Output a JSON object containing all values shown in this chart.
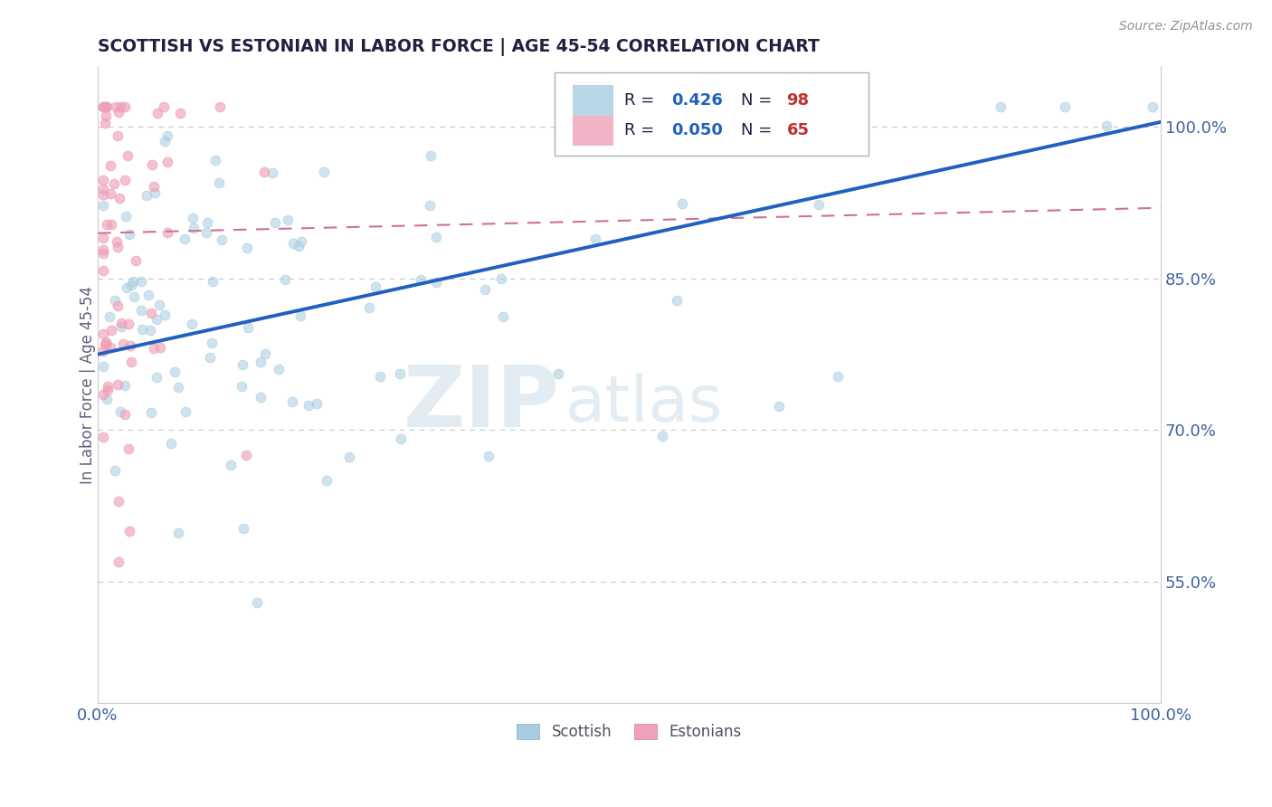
{
  "title": "SCOTTISH VS ESTONIAN IN LABOR FORCE | AGE 45-54 CORRELATION CHART",
  "source_text": "Source: ZipAtlas.com",
  "ylabel": "In Labor Force | Age 45-54",
  "xlim": [
    0.0,
    1.0
  ],
  "ylim": [
    0.43,
    1.06
  ],
  "x_ticks": [
    0.0,
    1.0
  ],
  "x_tick_labels": [
    "0.0%",
    "100.0%"
  ],
  "y_ticks": [
    0.55,
    0.7,
    0.85,
    1.0
  ],
  "y_tick_labels": [
    "55.0%",
    "70.0%",
    "85.0%",
    "100.0%"
  ],
  "watermark_zip": "ZIP",
  "watermark_atlas": "atlas",
  "legend_r1": "0.426",
  "legend_n1": "98",
  "legend_r2": "0.050",
  "legend_n2": "65",
  "legend_label1": "Scottish",
  "legend_label2": "Estonians",
  "blue_line_y0": 0.775,
  "blue_line_y1": 1.005,
  "pink_line_y0": 0.895,
  "pink_line_y1": 0.92,
  "scatter_size": 60,
  "blue_color": "#a8cce0",
  "pink_color": "#f0a0b8",
  "blue_line_color": "#2060c0",
  "pink_line_color": "#d07090",
  "grid_color": "#c8c8c8",
  "title_color": "#202040",
  "ylabel_color": "#606080",
  "tick_color": "#4060a0",
  "source_color": "#909090",
  "legend_text_color": "#202040",
  "legend_r_color": "#2060c0",
  "legend_n_color": "#c03030"
}
